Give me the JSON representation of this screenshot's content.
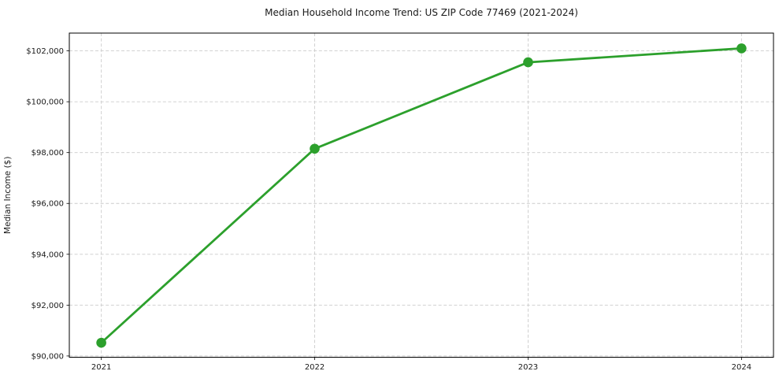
{
  "chart_data": {
    "type": "line",
    "title": "Median Household Income Trend: US ZIP Code 77469 (2021-2024)",
    "xlabel": "",
    "ylabel": "Median Income ($)",
    "x": [
      2021,
      2022,
      2023,
      2024
    ],
    "x_tick_labels": [
      "2021",
      "2022",
      "2023",
      "2024"
    ],
    "series": [
      {
        "name": "Median Household Income",
        "values": [
          90520,
          98150,
          101550,
          102100
        ],
        "color": "#2ca02c",
        "marker": "circle",
        "line_width": 2.8,
        "marker_radius": 6.3
      }
    ],
    "y_ticks": [
      90000,
      92000,
      94000,
      96000,
      98000,
      100000,
      102000
    ],
    "y_tick_labels": [
      "$90,000",
      "$92,000",
      "$94,000",
      "$96,000",
      "$98,000",
      "$100,000",
      "$102,000"
    ],
    "xlim": [
      2020.85,
      2024.15
    ],
    "ylim": [
      89950,
      102700
    ],
    "grid": true,
    "grid_color": "#cccccc",
    "axis_color": "#000000",
    "tick_label_color": "#1a1a1a",
    "legend_position": "none",
    "background": "#ffffff"
  }
}
